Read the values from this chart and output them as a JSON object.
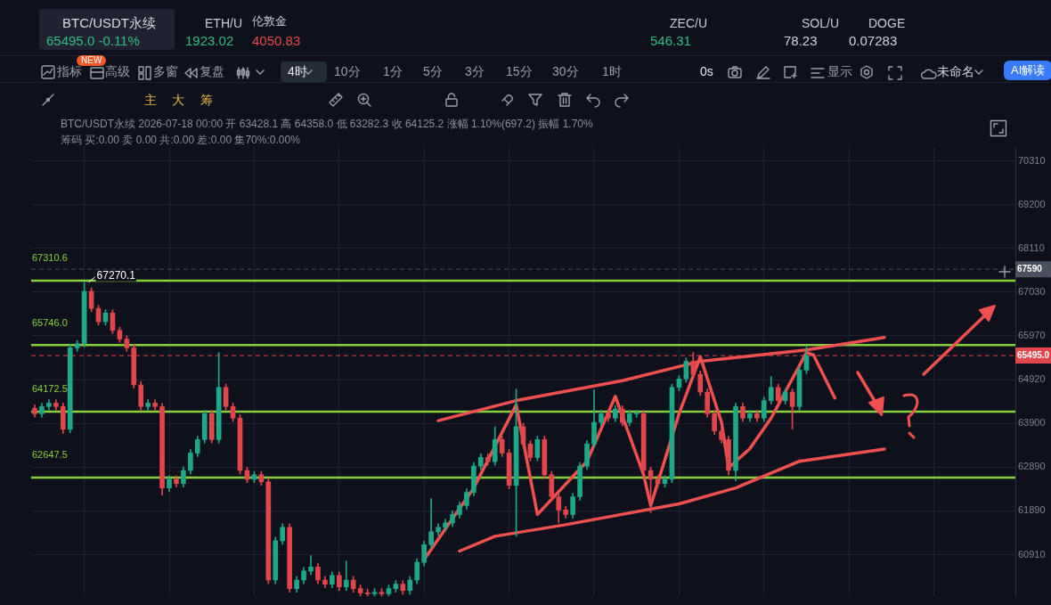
{
  "chart_data": {
    "type": "candlestick",
    "title": "BTC/USDT永续",
    "subtitle": "65495.0 -0.11%",
    "categories": [
      null,
      null,
      null,
      null,
      null,
      null,
      null,
      null,
      null,
      null,
      null,
      null,
      null,
      null,
      null,
      null,
      null,
      null,
      null,
      null,
      null,
      null,
      null,
      null,
      null,
      null,
      null,
      null,
      null,
      null,
      null,
      null,
      null,
      null,
      null,
      null,
      null,
      null,
      null,
      null,
      null,
      null,
      null,
      null,
      null,
      null,
      null,
      null,
      null,
      null,
      null,
      null,
      null,
      null,
      null,
      null,
      null,
      null,
      null,
      null,
      null,
      null,
      null,
      null,
      null,
      null,
      null,
      null,
      null,
      null,
      null,
      null,
      null,
      null,
      null,
      null,
      null,
      null,
      null,
      null,
      null,
      null,
      null,
      null,
      null,
      null,
      null,
      null,
      null,
      null,
      null,
      null,
      null,
      null,
      null,
      null,
      null,
      null,
      null,
      null,
      null,
      null,
      null,
      null,
      null,
      null,
      null,
      null,
      null,
      null,
      null,
      null,
      null,
      null,
      null,
      null,
      null,
      null,
      null,
      null,
      null,
      null,
      null,
      null,
      null,
      null,
      null,
      null,
      null,
      null,
      null,
      null,
      null,
      null,
      null,
      null,
      null,
      null,
      null
    ],
    "ohlc": [
      [
        64250,
        64330,
        64040,
        64120
      ],
      [
        64120,
        64370,
        64040,
        64290
      ],
      [
        64290,
        64450,
        64210,
        64370
      ],
      [
        64370,
        64450,
        64210,
        64290
      ],
      [
        64290,
        64370,
        63660,
        63760
      ],
      [
        63760,
        65760,
        63680,
        65680
      ],
      [
        65680,
        65860,
        65600,
        65780
      ],
      [
        65780,
        67270.1,
        65700,
        67050
      ],
      [
        67050,
        67130,
        66550,
        66630
      ],
      [
        66630,
        66710,
        66230,
        66310
      ],
      [
        66310,
        66600,
        66230,
        66520
      ],
      [
        66520,
        66600,
        66020,
        66100
      ],
      [
        66100,
        66180,
        65810,
        65890
      ],
      [
        65890,
        65970,
        65600,
        65680
      ],
      [
        65680,
        65760,
        64720,
        64800
      ],
      [
        64800,
        64880,
        64210,
        64290
      ],
      [
        64290,
        64450,
        64210,
        64370
      ],
      [
        64370,
        64450,
        64210,
        64290
      ],
      [
        64290,
        64370,
        62250,
        62410
      ],
      [
        62410,
        62690,
        62330,
        62610
      ],
      [
        62610,
        62690,
        62430,
        62510
      ],
      [
        62510,
        62890,
        62430,
        62810
      ],
      [
        62810,
        63290,
        62730,
        63210
      ],
      [
        63210,
        63600,
        63130,
        63520
      ],
      [
        63520,
        64200,
        63440,
        64120
      ],
      [
        64120,
        64200,
        63440,
        63520
      ],
      [
        63520,
        65570,
        63440,
        64740
      ],
      [
        64740,
        64820,
        64210,
        64290
      ],
      [
        64290,
        64370,
        63940,
        64020
      ],
      [
        64020,
        64100,
        62730,
        62810
      ],
      [
        62810,
        62890,
        62530,
        62610
      ],
      [
        62610,
        62790,
        62530,
        62710
      ],
      [
        62710,
        62790,
        62470,
        62550
      ],
      [
        62550,
        62630,
        60270,
        60350
      ],
      [
        60350,
        61300,
        60270,
        61220
      ],
      [
        61220,
        61600,
        61140,
        61520
      ],
      [
        61520,
        61600,
        60080,
        60160
      ],
      [
        60160,
        60430,
        60080,
        60350
      ],
      [
        60350,
        60630,
        60270,
        60550
      ],
      [
        60550,
        60890,
        60470,
        60640
      ],
      [
        60640,
        60720,
        60270,
        60350
      ],
      [
        60350,
        60430,
        60180,
        60260
      ],
      [
        60260,
        60530,
        60180,
        60450
      ],
      [
        60450,
        60530,
        60120,
        60200
      ],
      [
        60200,
        60770,
        60120,
        60350
      ],
      [
        60350,
        60430,
        60080,
        60160
      ],
      [
        60160,
        60240,
        60000,
        60070
      ],
      [
        60070,
        60150,
        60000,
        60050
      ],
      [
        60050,
        60160,
        60000,
        60080
      ],
      [
        60080,
        60160,
        60000,
        60050
      ],
      [
        60050,
        60240,
        60000,
        60160
      ],
      [
        60160,
        60340,
        60080,
        60260
      ],
      [
        60260,
        60340,
        60040,
        60120
      ],
      [
        60120,
        60430,
        60040,
        60350
      ],
      [
        60350,
        60820,
        60270,
        60740
      ],
      [
        60740,
        61210,
        60660,
        61130
      ],
      [
        61130,
        62170,
        61050,
        61420
      ],
      [
        61420,
        61600,
        61340,
        61520
      ],
      [
        61520,
        61700,
        61440,
        61620
      ],
      [
        61620,
        61890,
        61540,
        61810
      ],
      [
        61810,
        62090,
        61730,
        62010
      ],
      [
        62010,
        62390,
        61930,
        62310
      ],
      [
        62310,
        62990,
        62230,
        62910
      ],
      [
        62910,
        63190,
        62830,
        63110
      ],
      [
        63110,
        63190,
        62930,
        63010
      ],
      [
        63010,
        63820,
        62930,
        63520
      ],
      [
        63520,
        63600,
        63130,
        63210
      ],
      [
        63210,
        63290,
        62390,
        62470
      ],
      [
        62470,
        64700,
        61320,
        63820
      ],
      [
        63820,
        63900,
        63340,
        63420
      ],
      [
        63420,
        63500,
        63030,
        63110
      ],
      [
        63110,
        63600,
        63030,
        63520
      ],
      [
        63520,
        63600,
        62630,
        62710
      ],
      [
        62710,
        62790,
        62130,
        62210
      ],
      [
        62210,
        62290,
        61620,
        61910
      ],
      [
        61910,
        61990,
        61730,
        61810
      ],
      [
        61810,
        62290,
        61730,
        62210
      ],
      [
        62210,
        62990,
        62130,
        62910
      ],
      [
        62910,
        63500,
        62830,
        63420
      ],
      [
        63420,
        64680,
        63340,
        63920
      ],
      [
        63920,
        64200,
        63840,
        64120
      ],
      [
        64120,
        64200,
        63940,
        64020
      ],
      [
        64020,
        64310,
        63940,
        64230
      ],
      [
        64230,
        64310,
        63840,
        63920
      ],
      [
        63920,
        64200,
        63840,
        64120
      ],
      [
        64120,
        64200,
        64040,
        64120
      ],
      [
        64120,
        64200,
        62730,
        62810
      ],
      [
        62810,
        62890,
        61850,
        62610
      ],
      [
        62610,
        62690,
        62430,
        62510
      ],
      [
        62510,
        62690,
        62430,
        62610
      ],
      [
        62610,
        64820,
        62530,
        64740
      ],
      [
        64740,
        65020,
        64660,
        64940
      ],
      [
        64940,
        65440,
        64860,
        65360
      ],
      [
        65360,
        65570,
        64970,
        65050
      ],
      [
        65050,
        65130,
        64550,
        64630
      ],
      [
        64630,
        64710,
        64040,
        64120
      ],
      [
        64120,
        64200,
        63640,
        63720
      ],
      [
        63720,
        63800,
        63440,
        63520
      ],
      [
        63520,
        63600,
        62710,
        62810
      ],
      [
        62810,
        64370,
        62570,
        64290
      ],
      [
        64290,
        64370,
        63940,
        64020
      ],
      [
        64020,
        64200,
        63940,
        64120
      ],
      [
        64120,
        64200,
        63940,
        64020
      ],
      [
        64020,
        64510,
        63940,
        64430
      ],
      [
        64430,
        65000,
        64350,
        64740
      ],
      [
        64740,
        64820,
        64350,
        64430
      ],
      [
        64430,
        64710,
        64350,
        64630
      ],
      [
        64630,
        64710,
        63760,
        64290
      ],
      [
        64290,
        65230,
        64210,
        65150
      ],
      [
        65150,
        65720,
        65070,
        65495
      ],
      null,
      null,
      null,
      null,
      null,
      null,
      null,
      null,
      null,
      null,
      null,
      null,
      null,
      null,
      null,
      null,
      null,
      null,
      null,
      null,
      null,
      null,
      null,
      null,
      null,
      null,
      null,
      null,
      null
    ],
    "series": [
      {
        "type": "line",
        "color": "#f05050",
        "values": [
          null,
          null,
          null,
          null,
          null,
          null,
          null,
          null,
          null,
          null,
          null,
          null,
          null,
          null,
          null,
          null,
          null,
          null,
          null,
          null,
          null,
          null,
          null,
          null,
          null,
          null,
          null,
          null,
          null,
          null,
          null,
          null,
          null,
          null,
          null,
          null,
          null,
          null,
          null,
          null,
          null,
          null,
          null,
          null,
          null,
          null,
          null,
          null,
          null,
          null,
          null,
          null,
          null,
          null,
          null,
          null,
          null,
          63960,
          null,
          null,
          null,
          null,
          null,
          null,
          null,
          null,
          null,
          null,
          64430,
          null,
          null,
          null,
          null,
          null,
          null,
          null,
          null,
          null,
          null,
          null,
          null,
          null,
          null,
          64900,
          null,
          null,
          null,
          null,
          null,
          null,
          null,
          null,
          null,
          null,
          65360,
          null,
          null,
          null,
          null,
          null,
          null,
          null,
          null,
          null,
          null,
          null,
          null,
          null,
          null,
          65630,
          null,
          null,
          null,
          null,
          null,
          null,
          null,
          null,
          null,
          null,
          65930,
          null,
          null,
          null,
          null,
          null,
          null,
          null,
          null,
          null,
          null,
          null,
          null,
          null,
          null,
          null,
          null,
          null,
          null
        ]
      },
      {
        "type": "line",
        "color": "#f05050",
        "values": [
          null,
          null,
          null,
          null,
          null,
          null,
          null,
          null,
          null,
          null,
          null,
          null,
          null,
          null,
          null,
          null,
          null,
          null,
          null,
          null,
          null,
          null,
          null,
          null,
          null,
          null,
          null,
          null,
          null,
          null,
          null,
          null,
          null,
          null,
          null,
          null,
          null,
          null,
          null,
          null,
          null,
          null,
          null,
          null,
          null,
          null,
          null,
          null,
          null,
          null,
          null,
          null,
          null,
          null,
          null,
          null,
          null,
          null,
          null,
          null,
          60990,
          null,
          null,
          null,
          null,
          61320,
          null,
          null,
          null,
          null,
          null,
          null,
          null,
          null,
          null,
          61580,
          null,
          null,
          null,
          null,
          null,
          null,
          null,
          null,
          null,
          null,
          null,
          null,
          null,
          null,
          null,
          62050,
          null,
          null,
          null,
          null,
          null,
          null,
          null,
          62410,
          null,
          null,
          null,
          null,
          null,
          null,
          null,
          null,
          63020,
          null,
          null,
          null,
          null,
          null,
          null,
          null,
          null,
          null,
          null,
          null,
          63300,
          null,
          null,
          null,
          null,
          null,
          null,
          null,
          null,
          null,
          null,
          null,
          null,
          null,
          null,
          null,
          null,
          null,
          null
        ]
      },
      {
        "type": "line",
        "color": "#f05050",
        "values": [
          null,
          null,
          null,
          null,
          null,
          null,
          null,
          null,
          null,
          null,
          null,
          null,
          null,
          null,
          null,
          null,
          null,
          null,
          null,
          null,
          null,
          null,
          null,
          null,
          null,
          null,
          null,
          null,
          null,
          null,
          null,
          null,
          null,
          null,
          null,
          null,
          null,
          null,
          null,
          null,
          null,
          null,
          null,
          null,
          null,
          null,
          null,
          null,
          null,
          null,
          null,
          null,
          null,
          null,
          null,
          60800,
          null,
          null,
          null,
          null,
          null,
          null,
          62410,
          null,
          null,
          null,
          null,
          null,
          64330,
          null,
          null,
          61810,
          null,
          null,
          null,
          null,
          null,
          null,
          63020,
          null,
          null,
          null,
          64530,
          null,
          null,
          null,
          62710,
          62010,
          null,
          null,
          null,
          64120,
          null,
          null,
          65470,
          null,
          null,
          63920,
          62870,
          null,
          null,
          63310,
          null,
          null,
          64020,
          null,
          null,
          null,
          null,
          65570,
          65510,
          null,
          null,
          64490,
          null,
          null,
          null,
          null,
          null,
          null,
          null,
          null,
          null,
          null,
          null,
          null,
          null,
          null,
          null,
          null,
          null,
          null,
          null,
          null,
          null,
          null,
          null,
          null,
          null
        ]
      }
    ],
    "ylim": [
      59990,
      70670
    ],
    "log": true,
    "yticks": [
      70310,
      69200,
      68110,
      67030,
      65970,
      64920,
      63900,
      62890,
      61890,
      60910
    ],
    "tick_labels": "y",
    "grid": true,
    "ref_lines": [
      {
        "axis": "y",
        "value": 67310.6,
        "label": "67310.6",
        "color": "#86d13b"
      },
      {
        "axis": "y",
        "value": 65746.0,
        "label": "65746.0",
        "color": "#86d13b"
      },
      {
        "axis": "y",
        "value": 64172.5,
        "label": "64172.5",
        "color": "#86d13b"
      },
      {
        "axis": "y",
        "value": 62647.5,
        "label": "62647.5",
        "color": "#86d13b"
      },
      {
        "axis": "y",
        "value": 67590,
        "label": "67590",
        "color": "#4a505e",
        "line_style": "dashed"
      },
      {
        "axis": "y",
        "value": 65495,
        "label": "65495.0",
        "color": "#e0464b",
        "line_style": "dashed"
      }
    ],
    "annotations": [
      {
        "text": "67270.1",
        "y": 67270.1
      },
      "ETH/U",
      "1923.02",
      "伦敦金",
      "4050.83",
      "ZEC/U",
      "546.31",
      "SOL/U",
      "78.23",
      "DOGE",
      "0.07283",
      "NEW",
      "指标",
      "高级",
      "多窗",
      "复盘",
      "4时",
      "10分",
      "1分",
      "5分",
      "3分",
      "15分",
      "30分",
      "1时",
      "0s",
      "显示",
      "未命名",
      "AI解读",
      "主",
      "大",
      "筹",
      "BTC/USDT永续 2026-07-18 00:00 开 63428.1 高 64358.0 低 63282.3 收 64125.2 涨幅 1.10%(697.2) 振幅 1.70%",
      "筹码 买:0.00 卖 0.00 共:0.00 差:0.00 集70%:0.00%"
    ]
  }
}
